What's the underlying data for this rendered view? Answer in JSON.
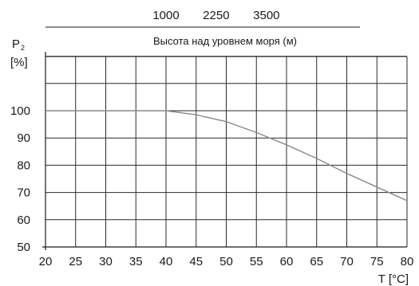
{
  "chart_data": {
    "type": "line",
    "title": "",
    "xlabel": "T [°C]",
    "ylabel_main": "P",
    "ylabel_sub": "2",
    "ylabel_unit": "[%]",
    "xlim": [
      20,
      80
    ],
    "ylim": [
      50,
      100
    ],
    "x_ticks": [
      20,
      25,
      30,
      35,
      40,
      45,
      50,
      55,
      60,
      65,
      70,
      75,
      80
    ],
    "y_ticks": [
      50,
      60,
      70,
      80,
      90,
      100
    ],
    "grid": true,
    "secondary_axis": {
      "label": "Высота над уровнем моря (м)",
      "ticks": [
        {
          "label": "1000",
          "at_x": 40
        },
        {
          "label": "2250",
          "at_x": 48.33
        },
        {
          "label": "3500",
          "at_x": 56.67
        }
      ]
    },
    "series": [
      {
        "color": "#8a8a8a",
        "points": [
          [
            20,
            100
          ],
          [
            25,
            100
          ],
          [
            30,
            100
          ],
          [
            35,
            100
          ],
          [
            40,
            100
          ],
          [
            45,
            98.5
          ],
          [
            50,
            96
          ],
          [
            55,
            92
          ],
          [
            60,
            87.5
          ],
          [
            65,
            82.5
          ],
          [
            70,
            77
          ],
          [
            75,
            72
          ],
          [
            80,
            67
          ]
        ]
      }
    ]
  }
}
